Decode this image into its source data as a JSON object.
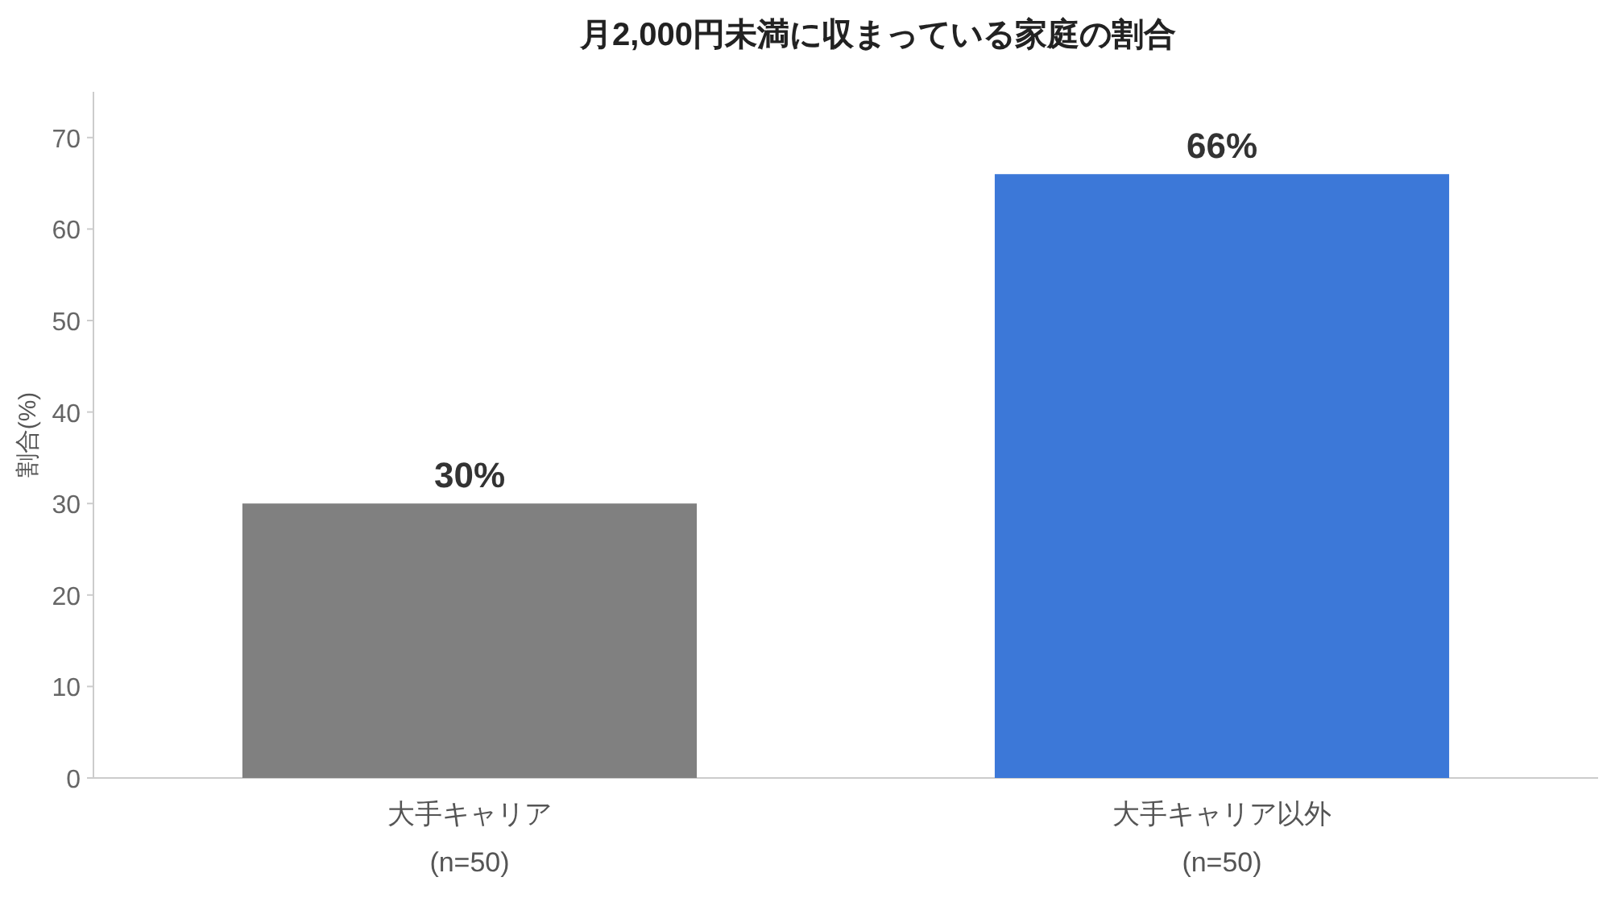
{
  "chart_data": {
    "type": "bar",
    "title": "月2,000円未満に収まっている家庭の割合",
    "ylabel": "割合(%)",
    "categories": [
      "大手キャリア\n(n=50)",
      "大手キャリア以外\n(n=50)"
    ],
    "values": [
      30,
      66
    ],
    "colors": [
      "#808080",
      "#3c78d8"
    ],
    "value_labels": [
      "30%",
      "66%"
    ],
    "ylim": [
      0,
      75
    ],
    "yticks": [
      0,
      10,
      20,
      30,
      40,
      50,
      60,
      70
    ],
    "grid": false
  }
}
